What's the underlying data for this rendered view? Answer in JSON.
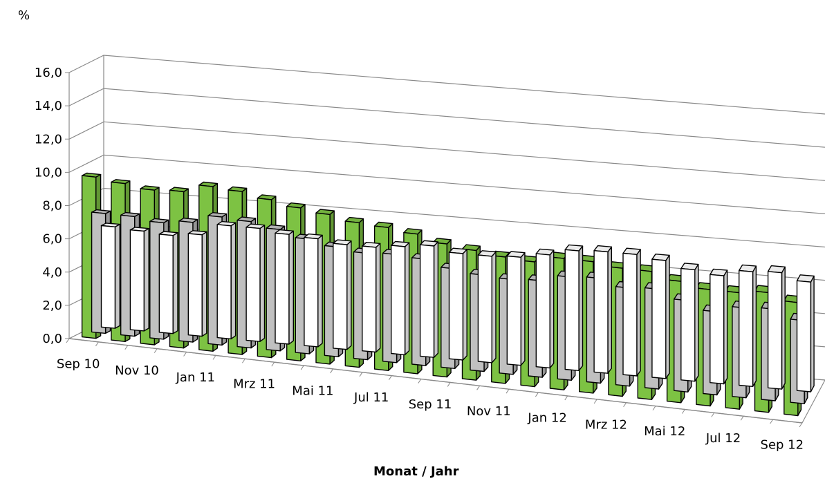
{
  "chart_data": {
    "type": "bar",
    "ylabel": "%",
    "xlabel": "Monat / Jahr",
    "ylim": [
      0,
      16
    ],
    "ytick_labels": [
      "0,0",
      "2,0",
      "4,0",
      "6,0",
      "8,0",
      "10,0",
      "12,0",
      "14,0",
      "16,0"
    ],
    "ytick_values": [
      0,
      2,
      4,
      6,
      8,
      10,
      12,
      14,
      16
    ],
    "grid": true,
    "categories": [
      "Sep 10",
      "Okt 10",
      "Nov 10",
      "Dez 10",
      "Jan 11",
      "Feb 11",
      "Mrz 11",
      "Apr 11",
      "Mai 11",
      "Jun 11",
      "Jul 11",
      "Aug 11",
      "Sep 11",
      "Okt 11",
      "Nov 11",
      "Dez 11",
      "Jan 12",
      "Feb 12",
      "Mrz 12",
      "Apr 12",
      "Mai 12",
      "Jun 12",
      "Jul 12",
      "Aug 12",
      "Sep 12"
    ],
    "category_label_visible": [
      true,
      false,
      true,
      false,
      true,
      false,
      true,
      false,
      true,
      false,
      true,
      false,
      true,
      false,
      true,
      false,
      true,
      false,
      true,
      false,
      true,
      false,
      true,
      false,
      true
    ],
    "series": [
      {
        "color": "#ffffff",
        "values": [
          6.1,
          6.0,
          5.9,
          6.1,
          6.8,
          6.8,
          6.6,
          6.5,
          6.3,
          6.3,
          6.5,
          6.7,
          6.4,
          6.4,
          6.5,
          6.8,
          7.2,
          7.3,
          7.3,
          7.1,
          6.7,
          6.5,
          6.9,
          7.0,
          6.6
        ]
      },
      {
        "color": "#c0c0c0",
        "values": [
          7.2,
          7.2,
          7.0,
          7.2,
          7.7,
          7.6,
          7.3,
          6.9,
          6.6,
          6.4,
          6.5,
          6.4,
          6.0,
          5.8,
          5.7,
          5.8,
          6.2,
          6.3,
          5.9,
          6.0,
          5.5,
          5.0,
          5.4,
          5.5,
          5.0
        ]
      },
      {
        "color": "#7dc243",
        "values": [
          9.7,
          9.5,
          9.3,
          9.4,
          9.9,
          9.8,
          9.5,
          9.2,
          9.0,
          8.7,
          8.6,
          8.4,
          8.0,
          7.8,
          7.6,
          7.5,
          7.9,
          7.9,
          7.7,
          7.7,
          7.3,
          7.0,
          7.0,
          7.2,
          6.8
        ]
      }
    ]
  }
}
